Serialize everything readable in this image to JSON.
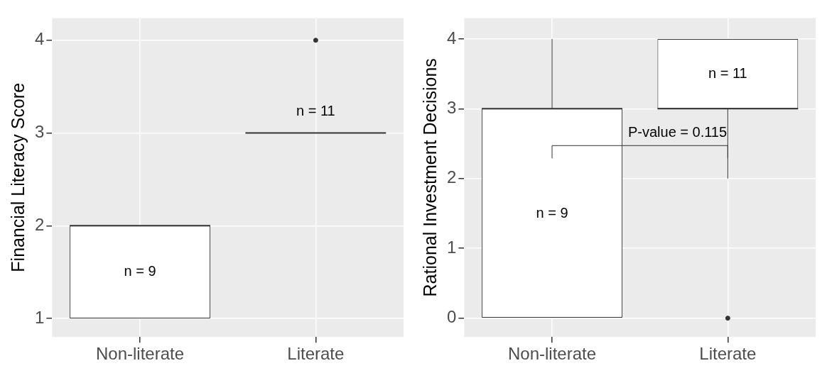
{
  "chart_data": [
    {
      "type": "box",
      "ylabel": "Financial Literacy Score",
      "categories": [
        "Non-literate",
        "Literate"
      ],
      "ylim": [
        0.8,
        4.24
      ],
      "yticks": [
        1,
        2,
        3,
        4
      ],
      "grid": true,
      "marker": "circle",
      "boxes": [
        {
          "low": 1,
          "q1": 1,
          "median": 2,
          "q3": 2,
          "high": 2
        },
        {
          "low": 3,
          "q1": 3,
          "median": 3,
          "q3": 3,
          "high": 3,
          "outliers": [
            4
          ]
        }
      ],
      "annotations": [
        "n = 9",
        "n = 11"
      ]
    },
    {
      "type": "box",
      "ylabel": "Rational Investment Decisions",
      "categories": [
        "Non-literate",
        "Literate"
      ],
      "ylim": [
        -0.27,
        4.3
      ],
      "yticks": [
        0,
        1,
        2,
        3,
        4
      ],
      "grid": true,
      "marker": "circle",
      "boxes": [
        {
          "low": 0,
          "q1": 0,
          "median": 3,
          "q3": 3,
          "high": 4
        },
        {
          "low": 2,
          "q1": 3,
          "median": 3,
          "q3": 4,
          "high": 4,
          "outliers": [
            0
          ]
        }
      ],
      "annotations": [
        "n = 9",
        "n = 11",
        "P-value = 0.115"
      ]
    }
  ]
}
